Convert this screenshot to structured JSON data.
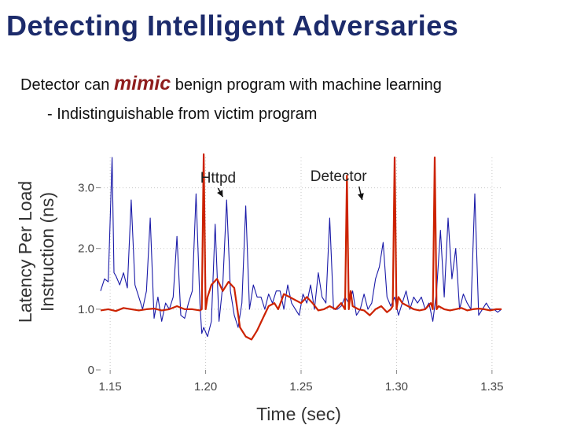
{
  "slide": {
    "title": "Detecting Intelligent Adversaries",
    "bullet1": {
      "before": "Detector can ",
      "emphasis": "mimic",
      "after": " benign program with machine learning"
    },
    "bullet2": "- Indistinguishable from victim program"
  },
  "colors": {
    "title": "#1c2b6b",
    "emphasis": "#8f1d1d",
    "httpd_series": "#1a1aa8",
    "detector_series": "#cc2200",
    "grid": "#c8c8c8"
  },
  "chart_data": {
    "type": "line",
    "xlabel": "Time (sec)",
    "ylabel_lines": [
      "Latency Per Load",
      "Instruction (ns)"
    ],
    "xlim": [
      1.145,
      1.355
    ],
    "ylim": [
      0,
      3.5
    ],
    "x_ticks": [
      "1.15",
      "1.20",
      "1.25",
      "1.30",
      "1.35"
    ],
    "x_tick_values": [
      1.15,
      1.2,
      1.25,
      1.3,
      1.35
    ],
    "y_ticks": [
      "0",
      "1.0",
      "2.0",
      "3.0"
    ],
    "y_tick_values": [
      0,
      1,
      2,
      3
    ],
    "grid": true,
    "annotations": [
      {
        "text": "Httpd",
        "series": "Httpd",
        "x": 1.209,
        "y": 2.85
      },
      {
        "text": "Detector",
        "series": "Detector",
        "x": 1.282,
        "y": 2.8
      }
    ],
    "series": [
      {
        "name": "Httpd",
        "color": "#1a1aa8",
        "x": [
          1.145,
          1.147,
          1.149,
          1.151,
          1.152,
          1.153,
          1.155,
          1.157,
          1.159,
          1.161,
          1.163,
          1.165,
          1.167,
          1.169,
          1.171,
          1.173,
          1.175,
          1.177,
          1.179,
          1.181,
          1.183,
          1.185,
          1.187,
          1.189,
          1.191,
          1.193,
          1.195,
          1.197,
          1.198,
          1.199,
          1.201,
          1.203,
          1.205,
          1.207,
          1.209,
          1.211,
          1.213,
          1.215,
          1.217,
          1.219,
          1.221,
          1.223,
          1.225,
          1.227,
          1.229,
          1.231,
          1.233,
          1.235,
          1.237,
          1.239,
          1.241,
          1.243,
          1.245,
          1.247,
          1.249,
          1.251,
          1.253,
          1.255,
          1.257,
          1.259,
          1.261,
          1.263,
          1.265,
          1.267,
          1.269,
          1.271,
          1.273,
          1.275,
          1.277,
          1.279,
          1.281,
          1.283,
          1.285,
          1.287,
          1.289,
          1.291,
          1.293,
          1.295,
          1.297,
          1.299,
          1.301,
          1.303,
          1.305,
          1.307,
          1.309,
          1.311,
          1.313,
          1.315,
          1.317,
          1.319,
          1.321,
          1.323,
          1.325,
          1.327,
          1.329,
          1.331,
          1.333,
          1.335,
          1.337,
          1.339,
          1.341,
          1.343,
          1.345,
          1.347,
          1.349,
          1.351,
          1.353,
          1.355
        ],
        "y": [
          1.3,
          1.5,
          1.45,
          3.5,
          1.6,
          1.55,
          1.4,
          1.6,
          1.35,
          2.8,
          1.4,
          1.2,
          1.0,
          1.3,
          2.5,
          0.85,
          1.2,
          0.8,
          1.1,
          1.0,
          1.2,
          2.2,
          0.9,
          0.85,
          1.1,
          1.3,
          2.9,
          1.1,
          0.6,
          0.7,
          0.55,
          0.8,
          2.4,
          0.8,
          1.4,
          2.8,
          1.3,
          0.9,
          0.7,
          1.1,
          2.7,
          1.0,
          1.4,
          1.2,
          1.2,
          1.0,
          1.25,
          1.1,
          1.3,
          1.3,
          1.0,
          1.4,
          1.1,
          1.0,
          0.9,
          1.25,
          1.1,
          1.4,
          1.0,
          1.6,
          1.2,
          1.1,
          2.5,
          1.0,
          1.0,
          1.05,
          1.2,
          1.1,
          1.3,
          0.9,
          1.0,
          1.25,
          1.0,
          1.1,
          1.5,
          1.7,
          2.1,
          1.2,
          1.05,
          1.2,
          0.9,
          1.1,
          1.3,
          1.0,
          1.2,
          1.1,
          1.2,
          1.0,
          1.1,
          0.8,
          1.3,
          2.3,
          1.2,
          2.5,
          1.5,
          2.0,
          1.0,
          1.25,
          1.1,
          1.0,
          2.9,
          0.9,
          1.0,
          1.1,
          1.0,
          1.0,
          0.95,
          1.0
        ]
      },
      {
        "name": "Detector",
        "color": "#cc2200",
        "x": [
          1.145,
          1.149,
          1.153,
          1.157,
          1.161,
          1.165,
          1.169,
          1.173,
          1.177,
          1.181,
          1.185,
          1.189,
          1.193,
          1.197,
          1.198,
          1.199,
          1.2,
          1.201,
          1.203,
          1.206,
          1.209,
          1.212,
          1.215,
          1.218,
          1.221,
          1.224,
          1.227,
          1.23,
          1.233,
          1.236,
          1.238,
          1.241,
          1.244,
          1.247,
          1.25,
          1.253,
          1.256,
          1.259,
          1.262,
          1.265,
          1.268,
          1.271,
          1.273,
          1.274,
          1.275,
          1.276,
          1.277,
          1.28,
          1.283,
          1.286,
          1.289,
          1.292,
          1.295,
          1.297,
          1.298,
          1.299,
          1.3,
          1.301,
          1.303,
          1.306,
          1.309,
          1.312,
          1.315,
          1.318,
          1.319,
          1.32,
          1.321,
          1.322,
          1.325,
          1.328,
          1.331,
          1.334,
          1.337,
          1.34,
          1.343,
          1.346,
          1.349,
          1.352,
          1.355
        ],
        "y": [
          0.98,
          1.0,
          0.97,
          1.02,
          1.0,
          0.98,
          1.0,
          1.01,
          0.98,
          1.0,
          1.05,
          1.0,
          1.0,
          0.98,
          1.0,
          3.6,
          1.0,
          1.2,
          1.4,
          1.5,
          1.3,
          1.45,
          1.35,
          0.7,
          0.55,
          0.5,
          0.65,
          0.85,
          1.05,
          1.1,
          1.0,
          1.25,
          1.2,
          1.15,
          1.1,
          1.2,
          1.1,
          0.98,
          1.0,
          1.05,
          1.0,
          1.1,
          1.0,
          3.2,
          1.0,
          1.3,
          1.05,
          1.0,
          0.98,
          0.9,
          1.0,
          1.05,
          0.95,
          1.0,
          1.05,
          3.5,
          1.0,
          1.2,
          1.1,
          1.05,
          1.0,
          0.98,
          1.0,
          1.1,
          1.0,
          3.5,
          1.0,
          1.05,
          1.0,
          0.98,
          1.0,
          1.02,
          0.98,
          1.0,
          1.01,
          1.0,
          0.98,
          1.0,
          1.0
        ]
      }
    ]
  }
}
